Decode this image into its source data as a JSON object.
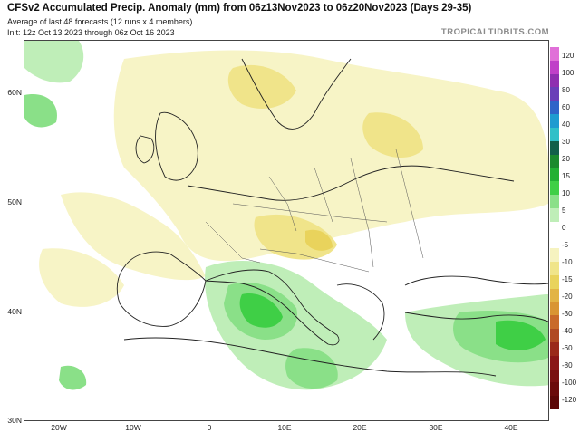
{
  "header": {
    "title": "CFSv2 Accumulated Precip. Anomaly (mm) from 06z13Nov2023 to 06z20Nov2023 (Days 29-35)",
    "subtitle1": "Average of last 48 forecasts (12 runs x 4 members)",
    "subtitle2": "Init: 12z Oct 13 2023 through 06z Oct 16 2023",
    "brand": "TROPICALTIDBITS.COM"
  },
  "map": {
    "lat_labels": [
      "60N",
      "50N",
      "40N",
      "30N"
    ],
    "lon_labels": [
      "20W",
      "10W",
      "0",
      "10E",
      "20E",
      "30E",
      "40E"
    ]
  },
  "colorbar": {
    "labels": [
      "120",
      "100",
      "80",
      "60",
      "40",
      "30",
      "20",
      "15",
      "10",
      "5",
      "0",
      "-5",
      "-10",
      "-15",
      "-20",
      "-30",
      "-40",
      "-60",
      "-80",
      "-100",
      "-120"
    ],
    "colors": [
      "#e070d8",
      "#c040c8",
      "#8f2fb0",
      "#6a3fb8",
      "#2f64c8",
      "#1f9bd0",
      "#30c0c8",
      "#12604a",
      "#1b8a2e",
      "#22b034",
      "#3fcf46",
      "#8ae088",
      "#bfeeb8",
      "#ffffff",
      "#ffffff",
      "#f6f3c0",
      "#f0e58a",
      "#e9d35c",
      "#e2b445",
      "#d99533",
      "#c96a2a",
      "#b04a22",
      "#9a2a1a",
      "#8a1717",
      "#7a1010",
      "#6b0a0a",
      "#5c0606"
    ]
  }
}
